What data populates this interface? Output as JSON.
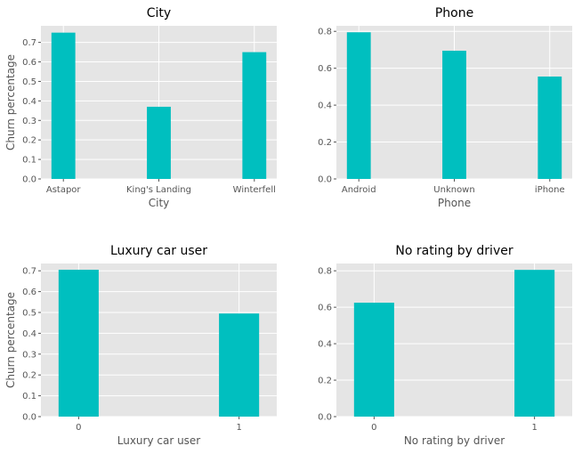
{
  "chart_data": [
    {
      "type": "bar",
      "title": "City",
      "categories": [
        "Astapor",
        "King's Landing",
        "Winterfell"
      ],
      "values": [
        0.75,
        0.37,
        0.65
      ],
      "xlabel": "City",
      "ylabel": "Churn percentage",
      "ylim": [
        0,
        0.785
      ],
      "yticks": [
        "0.0",
        "0.1",
        "0.2",
        "0.3",
        "0.4",
        "0.5",
        "0.6",
        "0.7"
      ],
      "grid": true,
      "bar_color": "#00bfbf"
    },
    {
      "type": "bar",
      "title": "Phone",
      "categories": [
        "Android",
        "Unknown",
        "iPhone"
      ],
      "values": [
        0.795,
        0.695,
        0.555
      ],
      "xlabel": "Phone",
      "ylabel": "",
      "ylim": [
        0,
        0.83
      ],
      "yticks": [
        "0.0",
        "0.2",
        "0.4",
        "0.6",
        "0.8"
      ],
      "grid": true,
      "bar_color": "#00bfbf"
    },
    {
      "type": "bar",
      "title": "Luxury car user",
      "categories": [
        "0",
        "1"
      ],
      "values": [
        0.705,
        0.495
      ],
      "xlabel": "Luxury car user",
      "ylabel": "Churn percentage",
      "ylim": [
        0,
        0.735
      ],
      "yticks": [
        "0.0",
        "0.1",
        "0.2",
        "0.3",
        "0.4",
        "0.5",
        "0.6",
        "0.7"
      ],
      "grid": true,
      "bar_color": "#00bfbf"
    },
    {
      "type": "bar",
      "title": "No rating by driver",
      "categories": [
        "0",
        "1"
      ],
      "values": [
        0.625,
        0.805
      ],
      "xlabel": "No rating by driver",
      "ylabel": "",
      "ylim": [
        0,
        0.84
      ],
      "yticks": [
        "0.0",
        "0.2",
        "0.4",
        "0.6",
        "0.8"
      ],
      "grid": true,
      "bar_color": "#00bfbf"
    }
  ]
}
